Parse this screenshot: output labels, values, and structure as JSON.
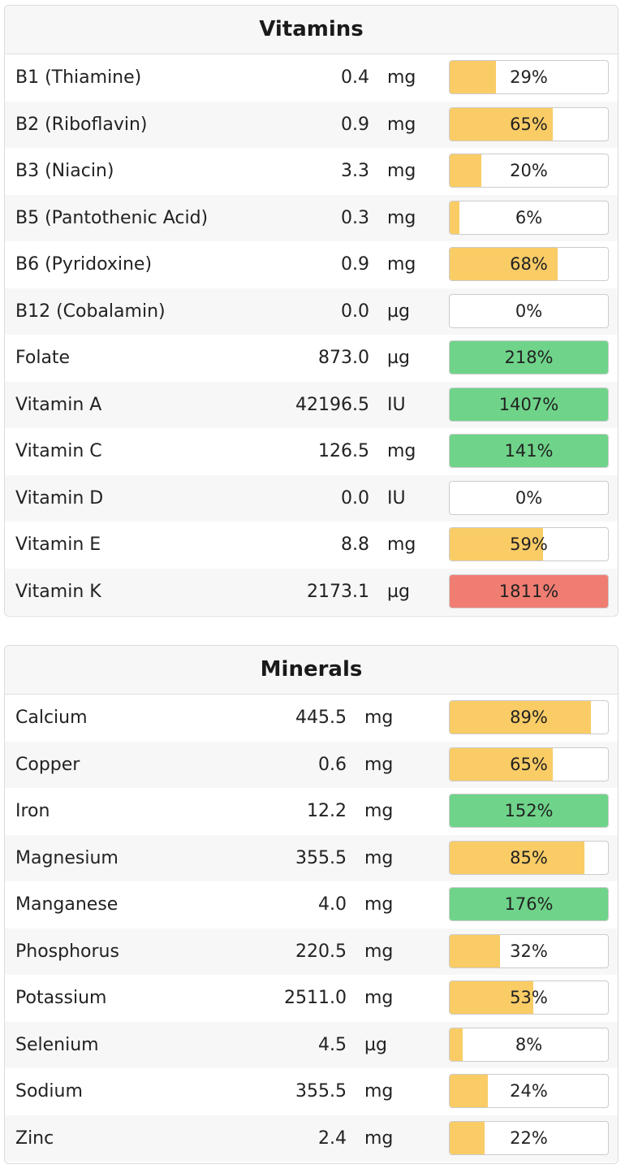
{
  "colors": {
    "low": "#f9cc66",
    "good": "#6fd48a",
    "high": "#f07d72"
  },
  "vitamins": {
    "title": "Vitamins",
    "rows": [
      {
        "name": "B1 (Thiamine)",
        "amount": "0.4",
        "unit": "mg",
        "percent": 29,
        "label": "29%",
        "level": "low"
      },
      {
        "name": "B2 (Riboflavin)",
        "amount": "0.9",
        "unit": "mg",
        "percent": 65,
        "label": "65%",
        "level": "low"
      },
      {
        "name": "B3 (Niacin)",
        "amount": "3.3",
        "unit": "mg",
        "percent": 20,
        "label": "20%",
        "level": "low"
      },
      {
        "name": "B5 (Pantothenic Acid)",
        "amount": "0.3",
        "unit": "mg",
        "percent": 6,
        "label": "6%",
        "level": "low"
      },
      {
        "name": "B6 (Pyridoxine)",
        "amount": "0.9",
        "unit": "mg",
        "percent": 68,
        "label": "68%",
        "level": "low"
      },
      {
        "name": "B12 (Cobalamin)",
        "amount": "0.0",
        "unit": "µg",
        "percent": 0,
        "label": "0%",
        "level": "low"
      },
      {
        "name": "Folate",
        "amount": "873.0",
        "unit": "µg",
        "percent": 218,
        "label": "218%",
        "level": "good"
      },
      {
        "name": "Vitamin A",
        "amount": "42196.5",
        "unit": "IU",
        "percent": 1407,
        "label": "1407%",
        "level": "good"
      },
      {
        "name": "Vitamin C",
        "amount": "126.5",
        "unit": "mg",
        "percent": 141,
        "label": "141%",
        "level": "good"
      },
      {
        "name": "Vitamin D",
        "amount": "0.0",
        "unit": "IU",
        "percent": 0,
        "label": "0%",
        "level": "low"
      },
      {
        "name": "Vitamin E",
        "amount": "8.8",
        "unit": "mg",
        "percent": 59,
        "label": "59%",
        "level": "low"
      },
      {
        "name": "Vitamin K",
        "amount": "2173.1",
        "unit": "µg",
        "percent": 1811,
        "label": "1811%",
        "level": "high"
      }
    ]
  },
  "minerals": {
    "title": "Minerals",
    "rows": [
      {
        "name": "Calcium",
        "amount": "445.5",
        "unit": "mg",
        "percent": 89,
        "label": "89%",
        "level": "low"
      },
      {
        "name": "Copper",
        "amount": "0.6",
        "unit": "mg",
        "percent": 65,
        "label": "65%",
        "level": "low"
      },
      {
        "name": "Iron",
        "amount": "12.2",
        "unit": "mg",
        "percent": 152,
        "label": "152%",
        "level": "good"
      },
      {
        "name": "Magnesium",
        "amount": "355.5",
        "unit": "mg",
        "percent": 85,
        "label": "85%",
        "level": "low"
      },
      {
        "name": "Manganese",
        "amount": "4.0",
        "unit": "mg",
        "percent": 176,
        "label": "176%",
        "level": "good"
      },
      {
        "name": "Phosphorus",
        "amount": "220.5",
        "unit": "mg",
        "percent": 32,
        "label": "32%",
        "level": "low"
      },
      {
        "name": "Potassium",
        "amount": "2511.0",
        "unit": "mg",
        "percent": 53,
        "label": "53%",
        "level": "low"
      },
      {
        "name": "Selenium",
        "amount": "4.5",
        "unit": "µg",
        "percent": 8,
        "label": "8%",
        "level": "low"
      },
      {
        "name": "Sodium",
        "amount": "355.5",
        "unit": "mg",
        "percent": 24,
        "label": "24%",
        "level": "low"
      },
      {
        "name": "Zinc",
        "amount": "2.4",
        "unit": "mg",
        "percent": 22,
        "label": "22%",
        "level": "low"
      }
    ]
  }
}
